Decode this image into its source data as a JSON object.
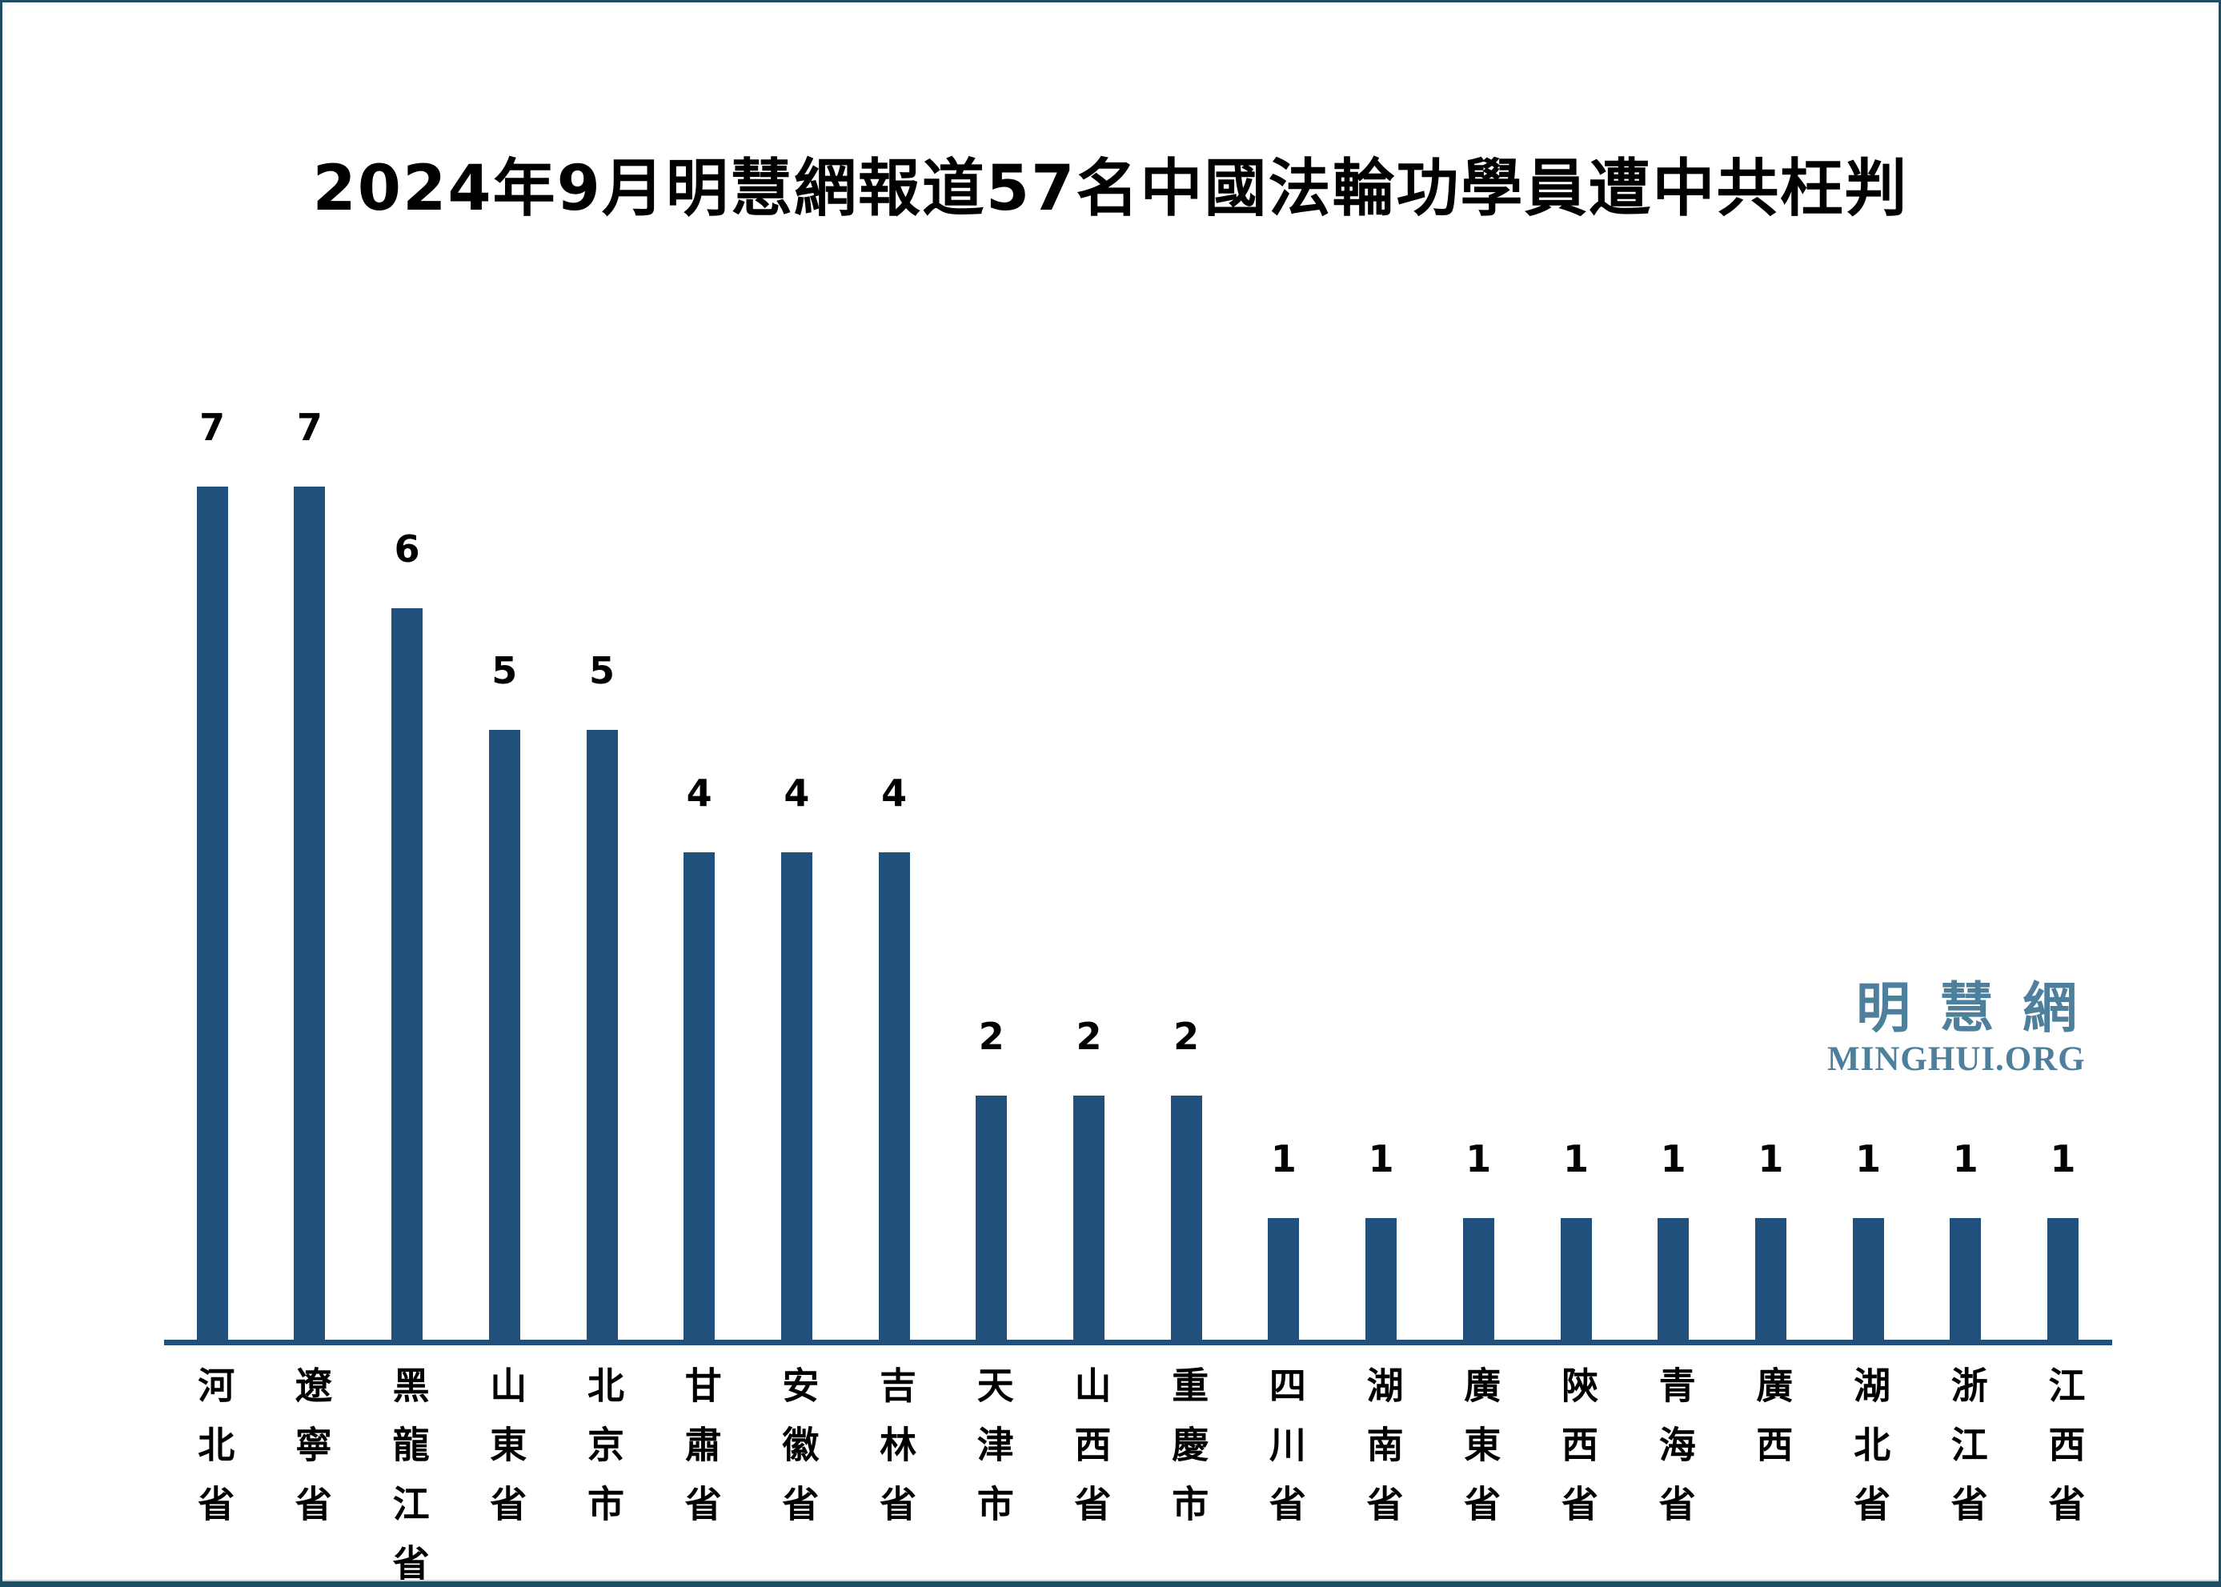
{
  "page": {
    "background_color": "#ffffff",
    "border_color": "#1F4D64"
  },
  "title": "2024年9月明慧網報道57名中國法輪功學員遭中共枉判",
  "logo": {
    "chinese": "明慧網",
    "english": "MINGHUI.ORG",
    "color": "#4E7F9C"
  },
  "chart_data": {
    "type": "bar",
    "title": "2024年9月明慧網報道57名中國法輪功學員遭中共枉判",
    "categories": [
      "河北省",
      "遼寧省",
      "黑龍江省",
      "山東省",
      "北京市",
      "甘肅省",
      "安徽省",
      "吉林省",
      "天津市",
      "山西省",
      "重慶市",
      "四川省",
      "湖南省",
      "廣東省",
      "陝西省",
      "青海省",
      "廣西",
      "湖北省",
      "浙江省",
      "江西省"
    ],
    "values": [
      7,
      7,
      6,
      5,
      5,
      4,
      4,
      4,
      2,
      2,
      2,
      1,
      1,
      1,
      1,
      1,
      1,
      1,
      1,
      1
    ],
    "total": 57,
    "bar_color": "#21507C",
    "value_labels_shown": true,
    "xlabel": "",
    "ylabel": "",
    "ylim": [
      0,
      7
    ],
    "grid": false,
    "legend": "none",
    "orientation": "vertical"
  }
}
